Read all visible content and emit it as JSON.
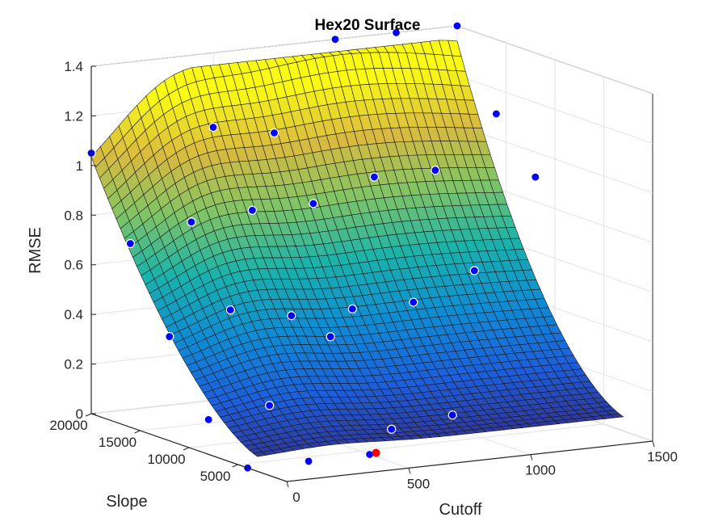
{
  "chart_data": {
    "type": "surface",
    "title": "Hex20 Surface",
    "xlabel": "Cutoff",
    "ylabel": "Slope",
    "zlabel": "RMSE",
    "xlim": [
      0,
      1500
    ],
    "ylim": [
      0,
      20000
    ],
    "zlim": [
      0,
      1.4
    ],
    "x_ticks": [
      "0",
      "500",
      "1000",
      "1500"
    ],
    "y_ticks": [
      "5000",
      "10000",
      "15000",
      "20000"
    ],
    "z_ticks": [
      "0",
      "0.2",
      "0.4",
      "0.6",
      "0.8",
      "1",
      "1.2",
      "1.4"
    ],
    "grid": true,
    "colormap": "parula",
    "sample_points": [
      {
        "cutoff": 0,
        "slope": 20000,
        "rmse": 1.05
      },
      {
        "cutoff": 0,
        "slope": 16000,
        "rmse": 0.74
      },
      {
        "cutoff": 0,
        "slope": 12000,
        "rmse": 0.42
      },
      {
        "cutoff": 0,
        "slope": 8000,
        "rmse": 0.14
      },
      {
        "cutoff": 0,
        "slope": 4000,
        "rmse": 0.0
      },
      {
        "cutoff": 250,
        "slope": 16000,
        "rmse": 0.8
      },
      {
        "cutoff": 250,
        "slope": 12000,
        "rmse": 0.5
      },
      {
        "cutoff": 250,
        "slope": 8000,
        "rmse": 0.17
      },
      {
        "cutoff": 250,
        "slope": 4000,
        "rmse": 0.0
      },
      {
        "cutoff": 500,
        "slope": 20000,
        "rmse": 1.1
      },
      {
        "cutoff": 500,
        "slope": 16000,
        "rmse": 0.82
      },
      {
        "cutoff": 500,
        "slope": 12000,
        "rmse": 0.45
      },
      {
        "cutoff": 500,
        "slope": 8000,
        "rmse": 0.42
      },
      {
        "cutoff": 500,
        "slope": 4000,
        "rmse": 0.0
      },
      {
        "cutoff": 750,
        "slope": 20000,
        "rmse": 1.05
      },
      {
        "cutoff": 750,
        "slope": 16000,
        "rmse": 0.82
      },
      {
        "cutoff": 750,
        "slope": 12000,
        "rmse": 0.45
      },
      {
        "cutoff": 750,
        "slope": 8000,
        "rmse": 0.02
      },
      {
        "cutoff": 1000,
        "slope": 20000,
        "rmse": 1.4
      },
      {
        "cutoff": 1000,
        "slope": 16000,
        "rmse": 0.9
      },
      {
        "cutoff": 1000,
        "slope": 12000,
        "rmse": 0.45
      },
      {
        "cutoff": 1000,
        "slope": 8000,
        "rmse": 0.05
      },
      {
        "cutoff": 1250,
        "slope": 20000,
        "rmse": 1.4
      },
      {
        "cutoff": 1250,
        "slope": 16000,
        "rmse": 0.9
      },
      {
        "cutoff": 1250,
        "slope": 12000,
        "rmse": 0.55
      },
      {
        "cutoff": 1500,
        "slope": 20000,
        "rmse": 1.4
      },
      {
        "cutoff": 1500,
        "slope": 16000,
        "rmse": 1.1
      },
      {
        "cutoff": 1500,
        "slope": 12000,
        "rmse": 0.9
      }
    ],
    "point_color": "#0000ff",
    "minimum_marker_color": "#ff0000"
  }
}
